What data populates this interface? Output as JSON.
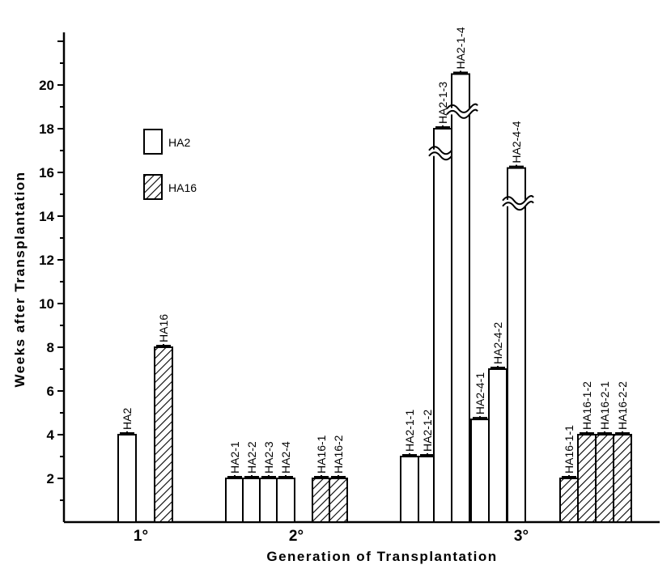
{
  "chart_data": {
    "type": "bar",
    "title": "",
    "xlabel": "Generation of Transplantation",
    "ylabel": "Weeks after Transplantation",
    "ylim": [
      0,
      22
    ],
    "yticks": [
      2,
      4,
      6,
      8,
      10,
      12,
      14,
      16,
      18,
      20
    ],
    "grid": false,
    "legend_position": "top-left",
    "legend": [
      {
        "name": "HA2",
        "pattern": "open"
      },
      {
        "name": "HA16",
        "pattern": "hatched"
      }
    ],
    "groups": [
      {
        "label": "1°",
        "bars": [
          {
            "label": "HA2",
            "value": 4,
            "series": "HA2"
          },
          {
            "label": "HA16",
            "value": 8,
            "series": "HA16"
          }
        ]
      },
      {
        "label": "2°",
        "bars": [
          {
            "label": "HA2-1",
            "value": 2,
            "series": "HA2"
          },
          {
            "label": "HA2-2",
            "value": 2,
            "series": "HA2"
          },
          {
            "label": "HA2-3",
            "value": 2,
            "series": "HA2"
          },
          {
            "label": "HA2-4",
            "value": 2,
            "series": "HA2"
          },
          {
            "label": "HA16-1",
            "value": 2,
            "series": "HA16"
          },
          {
            "label": "HA16-2",
            "value": 2,
            "series": "HA16"
          }
        ]
      },
      {
        "label": "3°",
        "bars": [
          {
            "label": "HA2-1-1",
            "value": 3,
            "series": "HA2"
          },
          {
            "label": "HA2-1-2",
            "value": 3,
            "series": "HA2"
          },
          {
            "label": "HA2-1-3",
            "value": 18,
            "series": "HA2",
            "axis_break": true
          },
          {
            "label": "HA2-1-4",
            "value": 20.5,
            "series": "HA2",
            "axis_break": true
          },
          {
            "label": "HA2-4-1",
            "value": 4.7,
            "series": "HA2"
          },
          {
            "label": "HA2-4-2",
            "value": 7,
            "series": "HA2"
          },
          {
            "label": "HA2-4-4",
            "value": 16.2,
            "series": "HA2",
            "axis_break": true
          },
          {
            "label": "HA16-1-1",
            "value": 2,
            "series": "HA16"
          },
          {
            "label": "HA16-1-2",
            "value": 4,
            "series": "HA16"
          },
          {
            "label": "HA16-2-1",
            "value": 4,
            "series": "HA16"
          },
          {
            "label": "HA16-2-2",
            "value": 4,
            "series": "HA16"
          }
        ]
      }
    ]
  }
}
